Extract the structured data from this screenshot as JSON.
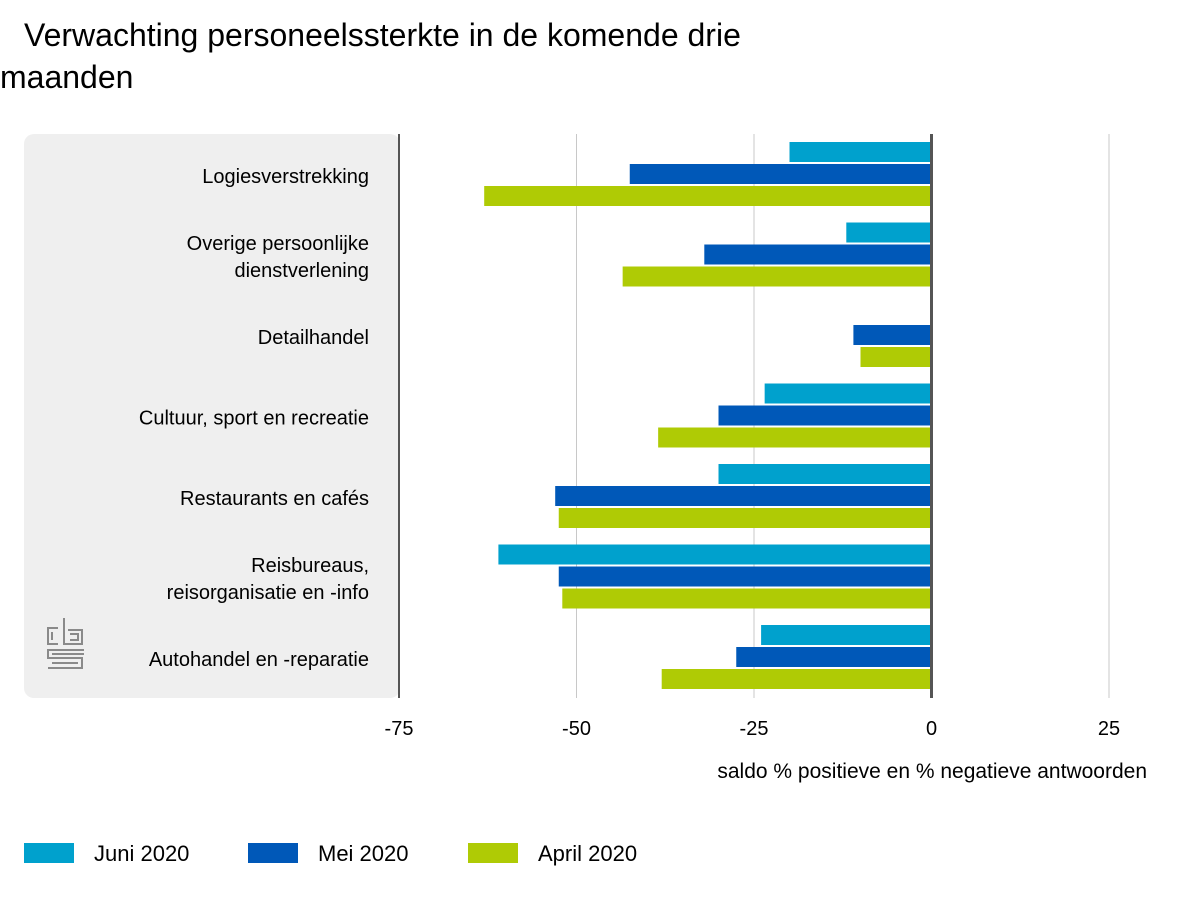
{
  "title": "Verwachting personeelssterkte in de komende drie maanden",
  "logo_text": "cbs",
  "colors": {
    "juni": "#00a1cd",
    "mei": "#0058b8",
    "april": "#afcb05",
    "panel": "#efefef",
    "grid": "#c8c8c8",
    "axis": "#555555"
  },
  "chart_data": {
    "type": "bar",
    "orientation": "horizontal",
    "categories": [
      "Logiesverstrekking",
      "Overige persoonlijke dienstverlening",
      "Detailhandel",
      "Cultuur, sport en recreatie",
      "Restaurants en cafés",
      "Reisbureaus, reisorganisatie en -info",
      "Autohandel en -reparatie"
    ],
    "category_lines": [
      [
        "Logiesverstrekking"
      ],
      [
        "Overige persoonlijke",
        "dienstverlening"
      ],
      [
        "Detailhandel"
      ],
      [
        "Cultuur, sport en recreatie"
      ],
      [
        "Restaurants en cafés"
      ],
      [
        "Reisbureaus,",
        "reisorganisatie en -info"
      ],
      [
        "Autohandel en -reparatie"
      ]
    ],
    "series": [
      {
        "name": "Juni 2020",
        "color": "#00a1cd",
        "values": [
          -20,
          -12,
          0,
          -23.5,
          -30,
          -61,
          -24
        ]
      },
      {
        "name": "Mei 2020",
        "color": "#0058b8",
        "values": [
          -42.5,
          -32,
          -11,
          -30,
          -53,
          -52.5,
          -27.5
        ]
      },
      {
        "name": "April 2020",
        "color": "#afcb05",
        "values": [
          -63,
          -43.5,
          -10,
          -38.5,
          -52.5,
          -52,
          -38
        ]
      }
    ],
    "xlim": [
      -75,
      25
    ],
    "xticks": [
      -75,
      -50,
      -25,
      0,
      25
    ],
    "xtick_labels": [
      "-75",
      "-50",
      "-25",
      "0",
      "25"
    ],
    "xlabel": "saldo % positieve en % negatieve antwoorden",
    "ylabel": "",
    "grid": true,
    "legend_position": "bottom-left"
  }
}
